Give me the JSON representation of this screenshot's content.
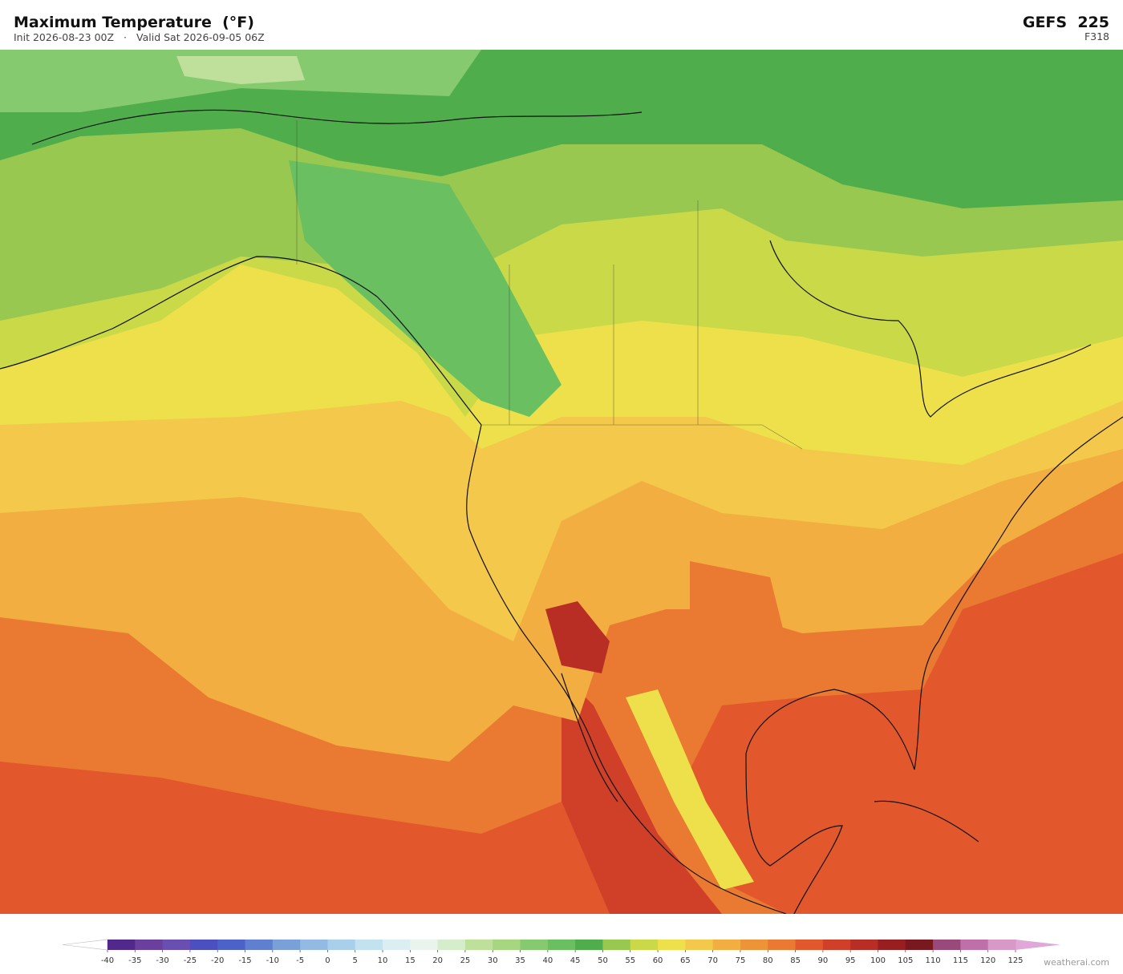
{
  "header": {
    "title": "Maximum Temperature  (°F)",
    "init": "Init 2026-08-23 00Z",
    "separator": "·",
    "valid": "Valid Sat 2026-09-05 06Z",
    "model": "GEFS  225",
    "forecast_hour": "F318"
  },
  "colorbar": {
    "ticks": [
      -40,
      -35,
      -30,
      -25,
      -20,
      -15,
      -10,
      -5,
      0,
      5,
      10,
      15,
      20,
      25,
      30,
      35,
      40,
      45,
      50,
      55,
      60,
      65,
      70,
      75,
      80,
      85,
      90,
      95,
      100,
      105,
      110,
      115,
      120,
      125
    ],
    "colors": [
      "#52288c",
      "#6a3f9e",
      "#6a4fb2",
      "#4b4fc0",
      "#4d62c8",
      "#5f80d0",
      "#7aa0d8",
      "#92bae2",
      "#a9d0ea",
      "#c3e2ef",
      "#dbeff2",
      "#e9f5ec",
      "#d6edcc",
      "#bfe09a",
      "#a6d67f",
      "#86ca6f",
      "#6abf60",
      "#4fae4b",
      "#98c850",
      "#c9d948",
      "#ede04a",
      "#f4c84a",
      "#f2ae40",
      "#ee9438",
      "#ea7a32",
      "#e2582c",
      "#d04028",
      "#b82e24",
      "#981e20",
      "#7a1820",
      "#9a4a7a",
      "#c070a8",
      "#d898c8"
    ],
    "under_color": "#ffffff",
    "over_color": "#e0a8d8"
  },
  "footer": {
    "credit": "weatherai.com"
  }
}
